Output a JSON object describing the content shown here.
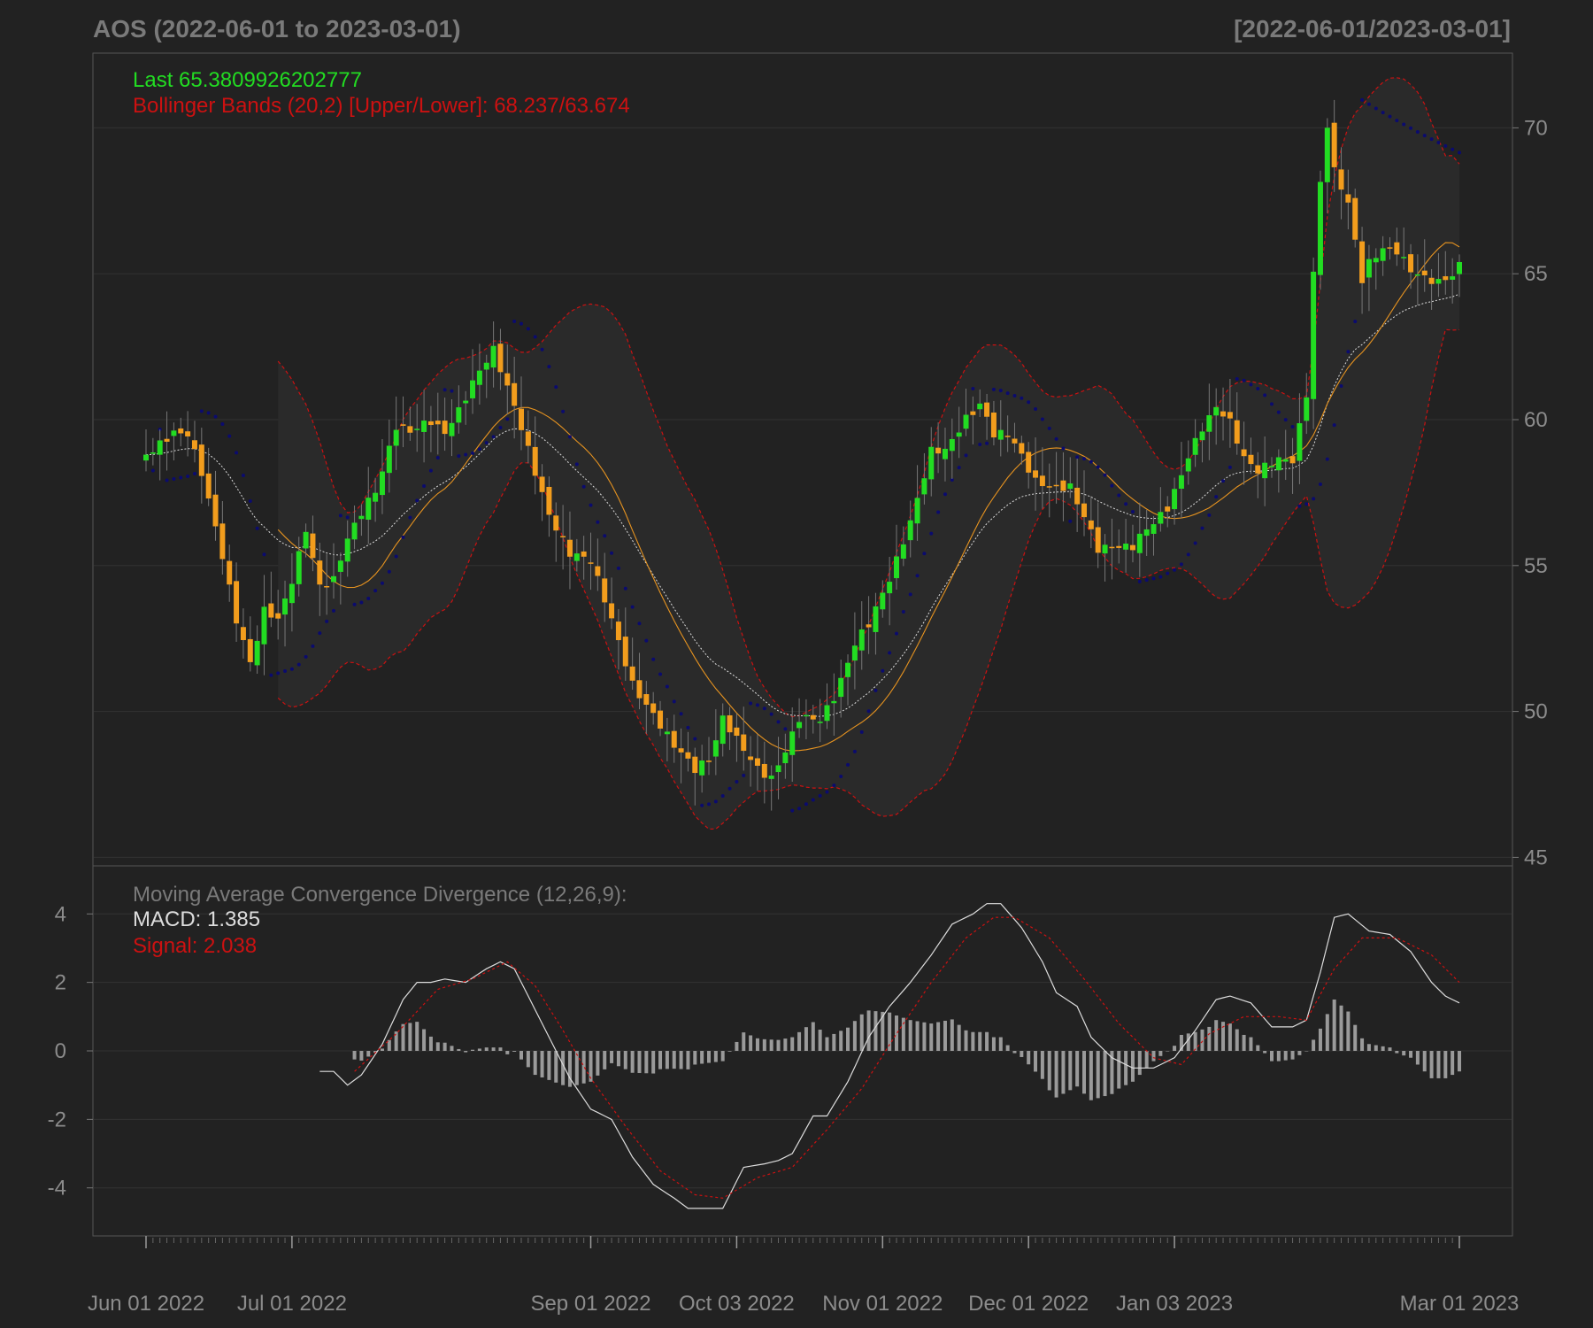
{
  "title": "AOS (2022-06-01 to 2023-03-01)",
  "range_label": "[2022-06-01/2023-03-01]",
  "colors": {
    "background": "#222222",
    "grid": "#333333",
    "frame": "#555555",
    "up": "#22dd22",
    "down": "#f29d1d",
    "sar": "#0b0b6e",
    "band": "#cc1111",
    "sma": "#e69320",
    "ema": "#dddddd",
    "macd": "#dddddd",
    "signal": "#cc1111",
    "hist": "#9a9a9a",
    "text": "#8c8c8c"
  },
  "legend": {
    "last": "Last 65.3809926202777",
    "bbands": "Bollinger Bands (20,2) [Upper/Lower]: 68.237/63.674",
    "macd_title": "Moving Average Convergence Divergence (12,26,9):",
    "macd_value": "MACD: 1.385",
    "signal_value": "Signal: 2.038"
  },
  "chart_data": [
    {
      "type": "candlestick",
      "ylim": [
        44.8,
        72.5
      ],
      "yticks": [
        "45",
        "50",
        "55",
        "60",
        "65",
        "70"
      ],
      "grid": true,
      "n_bars": 190,
      "xaxis_labels": [
        {
          "label": "Jun 01 2022",
          "index": 0
        },
        {
          "label": "Jul 01 2022",
          "index": 21
        },
        {
          "label": "Sep 01 2022",
          "index": 64
        },
        {
          "label": "Oct 03 2022",
          "index": 85
        },
        {
          "label": "Nov 01 2022",
          "index": 106
        },
        {
          "label": "Dec 01 2022",
          "index": 127
        },
        {
          "label": "Jan 03 2023",
          "index": 148
        },
        {
          "label": "Mar 01 2023",
          "index": 189
        }
      ],
      "close_anchors": [
        [
          0,
          58.8
        ],
        [
          4,
          59.7
        ],
        [
          6,
          59.6
        ],
        [
          8,
          58.2
        ],
        [
          11,
          55.2
        ],
        [
          13,
          53.0
        ],
        [
          15,
          51.6
        ],
        [
          17,
          53.5
        ],
        [
          19,
          53.3
        ],
        [
          21,
          54.6
        ],
        [
          23,
          56.3
        ],
        [
          25,
          54.2
        ],
        [
          27,
          54.4
        ],
        [
          29,
          55.8
        ],
        [
          31,
          56.8
        ],
        [
          33,
          57.6
        ],
        [
          36,
          59.9
        ],
        [
          38,
          59.7
        ],
        [
          41,
          59.9
        ],
        [
          43,
          59.4
        ],
        [
          45,
          60.2
        ],
        [
          48,
          61.7
        ],
        [
          50,
          62.5
        ],
        [
          53,
          60.6
        ],
        [
          55,
          59.0
        ],
        [
          58,
          56.6
        ],
        [
          61,
          55.3
        ],
        [
          64,
          55.2
        ],
        [
          67,
          53.3
        ],
        [
          70,
          51.0
        ],
        [
          73,
          49.8
        ],
        [
          76,
          48.7
        ],
        [
          79,
          48.0
        ],
        [
          81,
          48.4
        ],
        [
          83,
          49.9
        ],
        [
          86,
          48.8
        ],
        [
          88,
          48.0
        ],
        [
          90,
          47.6
        ],
        [
          92,
          48.5
        ],
        [
          94,
          49.7
        ],
        [
          97,
          49.8
        ],
        [
          99,
          50.6
        ],
        [
          102,
          52.4
        ],
        [
          104,
          53.0
        ],
        [
          107,
          54.4
        ],
        [
          110,
          56.4
        ],
        [
          113,
          59.0
        ],
        [
          115,
          59.1
        ],
        [
          118,
          60.1
        ],
        [
          120,
          60.5
        ],
        [
          122,
          59.4
        ],
        [
          124,
          59.4
        ],
        [
          126,
          58.7
        ],
        [
          128,
          57.9
        ],
        [
          131,
          57.8
        ],
        [
          133,
          57.8
        ],
        [
          135,
          56.7
        ],
        [
          137,
          55.5
        ],
        [
          140,
          55.5
        ],
        [
          142,
          55.6
        ],
        [
          144,
          56.3
        ],
        [
          147,
          57.1
        ],
        [
          150,
          58.8
        ],
        [
          152,
          59.7
        ],
        [
          154,
          60.3
        ],
        [
          156,
          59.8
        ],
        [
          158,
          58.6
        ],
        [
          160,
          58.3
        ],
        [
          163,
          58.8
        ],
        [
          165,
          58.7
        ],
        [
          167,
          60.9
        ],
        [
          168,
          65.0
        ],
        [
          169,
          68.0
        ],
        [
          170,
          70.0
        ],
        [
          171,
          68.4
        ],
        [
          173,
          67.3
        ],
        [
          175,
          64.8
        ],
        [
          176,
          65.4
        ],
        [
          178,
          66.0
        ],
        [
          180,
          65.9
        ],
        [
          182,
          65.2
        ],
        [
          184,
          64.8
        ],
        [
          186,
          64.6
        ],
        [
          188,
          64.8
        ],
        [
          189,
          65.4
        ]
      ]
    },
    {
      "type": "line",
      "name": "MACD (12,26,9)",
      "ylim": [
        -5.3,
        5.3
      ],
      "yticks": [
        "4",
        "2",
        "0",
        "-2",
        "-4"
      ],
      "grid": true,
      "macd_anchors": [
        [
          25,
          -0.6
        ],
        [
          27,
          -0.6
        ],
        [
          29,
          -1.0
        ],
        [
          31,
          -0.7
        ],
        [
          34,
          0.2
        ],
        [
          37,
          1.5
        ],
        [
          39,
          2.0
        ],
        [
          41,
          2.0
        ],
        [
          43,
          2.1
        ],
        [
          46,
          2.0
        ],
        [
          49,
          2.4
        ],
        [
          51,
          2.6
        ],
        [
          53,
          2.4
        ],
        [
          55,
          1.6
        ],
        [
          58,
          0.4
        ],
        [
          61,
          -0.8
        ],
        [
          64,
          -1.7
        ],
        [
          67,
          -2.0
        ],
        [
          70,
          -3.1
        ],
        [
          73,
          -3.9
        ],
        [
          76,
          -4.3
        ],
        [
          78,
          -4.6
        ],
        [
          80,
          -4.6
        ],
        [
          82,
          -4.6
        ],
        [
          83,
          -4.6
        ],
        [
          86,
          -3.4
        ],
        [
          89,
          -3.3
        ],
        [
          91,
          -3.2
        ],
        [
          93,
          -3.0
        ],
        [
          96,
          -1.9
        ],
        [
          98,
          -1.9
        ],
        [
          101,
          -0.9
        ],
        [
          104,
          0.4
        ],
        [
          107,
          1.3
        ],
        [
          110,
          2.0
        ],
        [
          113,
          2.8
        ],
        [
          116,
          3.7
        ],
        [
          119,
          4.0
        ],
        [
          121,
          4.3
        ],
        [
          123,
          4.3
        ],
        [
          126,
          3.6
        ],
        [
          129,
          2.6
        ],
        [
          131,
          1.7
        ],
        [
          134,
          1.3
        ],
        [
          136,
          0.4
        ],
        [
          139,
          -0.2
        ],
        [
          142,
          -0.5
        ],
        [
          145,
          -0.5
        ],
        [
          148,
          -0.2
        ],
        [
          151,
          0.6
        ],
        [
          154,
          1.5
        ],
        [
          156,
          1.6
        ],
        [
          159,
          1.4
        ],
        [
          162,
          0.7
        ],
        [
          165,
          0.7
        ],
        [
          167,
          0.9
        ],
        [
          169,
          2.3
        ],
        [
          171,
          3.9
        ],
        [
          173,
          4.0
        ],
        [
          176,
          3.5
        ],
        [
          179,
          3.4
        ],
        [
          182,
          2.9
        ],
        [
          185,
          2.0
        ],
        [
          187,
          1.6
        ],
        [
          189,
          1.4
        ]
      ],
      "signal_anchors": [
        [
          30,
          -0.6
        ],
        [
          36,
          0.5
        ],
        [
          42,
          1.8
        ],
        [
          47,
          2.1
        ],
        [
          52,
          2.6
        ],
        [
          56,
          1.9
        ],
        [
          60,
          0.6
        ],
        [
          64,
          -0.8
        ],
        [
          69,
          -2.2
        ],
        [
          74,
          -3.5
        ],
        [
          79,
          -4.2
        ],
        [
          83,
          -4.3
        ],
        [
          88,
          -3.7
        ],
        [
          93,
          -3.4
        ],
        [
          98,
          -2.3
        ],
        [
          103,
          -1.1
        ],
        [
          108,
          0.5
        ],
        [
          113,
          2.0
        ],
        [
          118,
          3.3
        ],
        [
          122,
          3.9
        ],
        [
          125,
          3.9
        ],
        [
          130,
          3.3
        ],
        [
          135,
          2.1
        ],
        [
          140,
          0.8
        ],
        [
          145,
          -0.2
        ],
        [
          149,
          -0.4
        ],
        [
          153,
          0.5
        ],
        [
          158,
          1.0
        ],
        [
          163,
          1.0
        ],
        [
          167,
          0.9
        ],
        [
          171,
          2.4
        ],
        [
          175,
          3.3
        ],
        [
          180,
          3.3
        ],
        [
          185,
          2.8
        ],
        [
          189,
          2.0
        ]
      ],
      "last_macd": 1.385,
      "last_signal": 2.038
    }
  ]
}
